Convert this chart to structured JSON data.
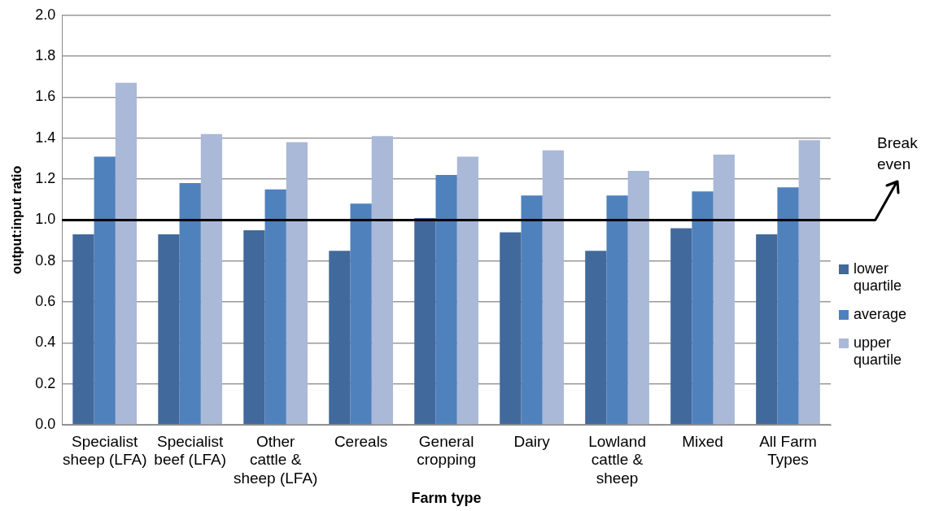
{
  "chart_data": {
    "type": "bar",
    "xlabel": "Farm type",
    "ylabel": "output:input ratio",
    "categories": [
      "Specialist sheep (LFA)",
      "Specialist beef (LFA)",
      "Other cattle & sheep (LFA)",
      "Cereals",
      "General cropping",
      "Dairy",
      "Lowland cattle & sheep",
      "Mixed",
      "All Farm Types"
    ],
    "series": [
      {
        "name": "lower quartile",
        "color": "#41699c",
        "values": [
          0.93,
          0.93,
          0.95,
          0.85,
          1.01,
          0.94,
          0.85,
          0.96,
          0.93
        ]
      },
      {
        "name": "average",
        "color": "#4f81bd",
        "values": [
          1.31,
          1.18,
          1.15,
          1.08,
          1.22,
          1.12,
          1.12,
          1.14,
          1.16
        ]
      },
      {
        "name": "upper quartile",
        "color": "#aab9d7",
        "values": [
          1.67,
          1.42,
          1.38,
          1.41,
          1.31,
          1.34,
          1.24,
          1.32,
          1.39
        ]
      }
    ],
    "ylim": [
      0,
      2
    ],
    "yticks": [
      {
        "value": 0,
        "label": "0.0"
      },
      0.2,
      0.4,
      0.6,
      0.8,
      {
        "value": 1,
        "label": "1.0"
      },
      1.2,
      1.4,
      1.6,
      1.8,
      {
        "value": 2,
        "label": "2.0"
      }
    ],
    "grid": "y",
    "legend": "right",
    "ref_lines": [
      {
        "axis": "y",
        "value": 1,
        "label": "Break even",
        "color": "#000000"
      }
    ]
  }
}
